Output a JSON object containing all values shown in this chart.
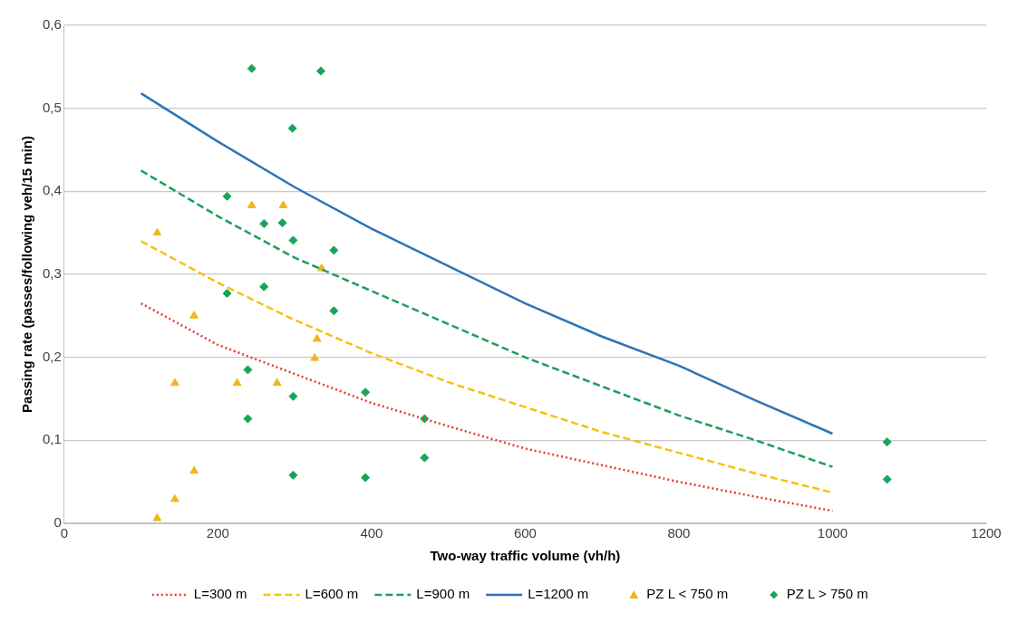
{
  "chart_data": {
    "type": "line",
    "xlabel": "Two-way traffic volume (vh/h)",
    "ylabel": "Passing rate (passes/following veh/15 min)",
    "xlim": [
      0,
      1200
    ],
    "xticks": [
      0,
      200,
      400,
      600,
      800,
      1000,
      1200
    ],
    "ylim": [
      0,
      0.6
    ],
    "yticks": [
      0,
      {
        "value": 0.1,
        "label": "0,1"
      },
      {
        "value": 0.2,
        "label": "0,2"
      },
      {
        "value": 0.3,
        "label": "0,3"
      },
      {
        "value": 0.4,
        "label": "0,4"
      },
      {
        "value": 0.5,
        "label": "0,5"
      },
      {
        "value": 0.6,
        "label": "0,6"
      }
    ],
    "grid": "y",
    "legend": "bottom",
    "series": [
      {
        "name": "L=300 m",
        "color": "#e8392f",
        "line_style": "dotted",
        "marker": "none",
        "x": [
          100,
          200,
          300,
          400,
          500,
          600,
          700,
          800,
          900,
          1000
        ],
        "values": [
          0.265,
          0.215,
          0.18,
          0.145,
          0.117,
          0.09,
          0.07,
          0.05,
          0.032,
          0.015
        ]
      },
      {
        "name": "L=600 m",
        "color": "#f5c211",
        "line_style": "dashed",
        "marker": "none",
        "x": [
          100,
          200,
          300,
          400,
          500,
          600,
          700,
          800,
          900,
          1000
        ],
        "values": [
          0.34,
          0.29,
          0.245,
          0.205,
          0.17,
          0.14,
          0.11,
          0.085,
          0.06,
          0.037
        ]
      },
      {
        "name": "L=900 m",
        "color": "#1e9e5a",
        "line_style": "dashed",
        "marker": "none",
        "x": [
          100,
          200,
          300,
          400,
          500,
          600,
          700,
          800,
          900,
          1000
        ],
        "values": [
          0.425,
          0.37,
          0.32,
          0.28,
          0.24,
          0.2,
          0.165,
          0.13,
          0.1,
          0.068
        ]
      },
      {
        "name": "L=1200 m",
        "color": "#2e75b6",
        "line_style": "solid",
        "marker": "none",
        "x": [
          100,
          200,
          300,
          400,
          500,
          600,
          700,
          800,
          900,
          1000
        ],
        "values": [
          0.518,
          0.46,
          0.405,
          0.355,
          0.31,
          0.265,
          0.225,
          0.19,
          0.148,
          0.108
        ]
      },
      {
        "name": "PZ L < 750 m",
        "type": "scatter",
        "color": "#f2b51c",
        "marker": "triangle",
        "x": [
          121,
          244,
          285,
          335,
          169,
          329,
          326,
          144,
          225,
          277,
          169,
          144,
          121
        ],
        "values": [
          0.35,
          0.383,
          0.383,
          0.307,
          0.25,
          0.222,
          0.199,
          0.169,
          0.169,
          0.169,
          0.063,
          0.029,
          0.006
        ]
      },
      {
        "name": "PZ L > 750 m",
        "type": "scatter",
        "color": "#1aa35a",
        "marker": "diamond",
        "x": [
          244,
          334,
          297,
          212,
          260,
          284,
          298,
          260,
          212,
          239,
          298,
          239,
          298,
          351,
          351,
          392,
          392,
          469,
          469,
          1071,
          1071
        ],
        "values": [
          0.548,
          0.545,
          0.476,
          0.394,
          0.361,
          0.362,
          0.341,
          0.285,
          0.277,
          0.185,
          0.153,
          0.126,
          0.058,
          0.329,
          0.256,
          0.158,
          0.055,
          0.126,
          0.079,
          0.098,
          0.053
        ]
      }
    ]
  }
}
